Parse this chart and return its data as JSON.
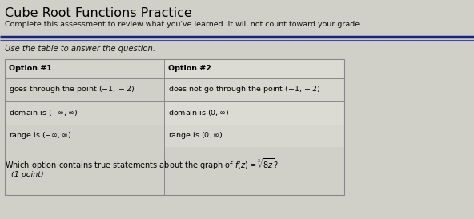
{
  "title": "Cube Root Functions Practice",
  "subtitle": "Complete this assessment to review what you've learned. It will not count toward your grade.",
  "instruction": "Use the table to answer the question.",
  "table_headers": [
    "Option #1",
    "Option #2"
  ],
  "question": "Which option contains true statements about the graph of $f(z) = \\sqrt[3]{8z}$?",
  "point_label": "(1 point)",
  "bg_color": "#d0cfc8",
  "cell_color_left": "#d4d3cc",
  "cell_color_right": "#dddcD5",
  "title_color": "#000000",
  "subtitle_color": "#111111",
  "divider_color_main": "#1a237e",
  "divider_color_thin": "#3949ab",
  "table_border_color": "#888888",
  "title_fontsize": 11.5,
  "subtitle_fontsize": 6.8,
  "instruction_fontsize": 7.2,
  "table_fontsize": 6.8,
  "question_fontsize": 7.0,
  "point_fontsize": 6.8
}
